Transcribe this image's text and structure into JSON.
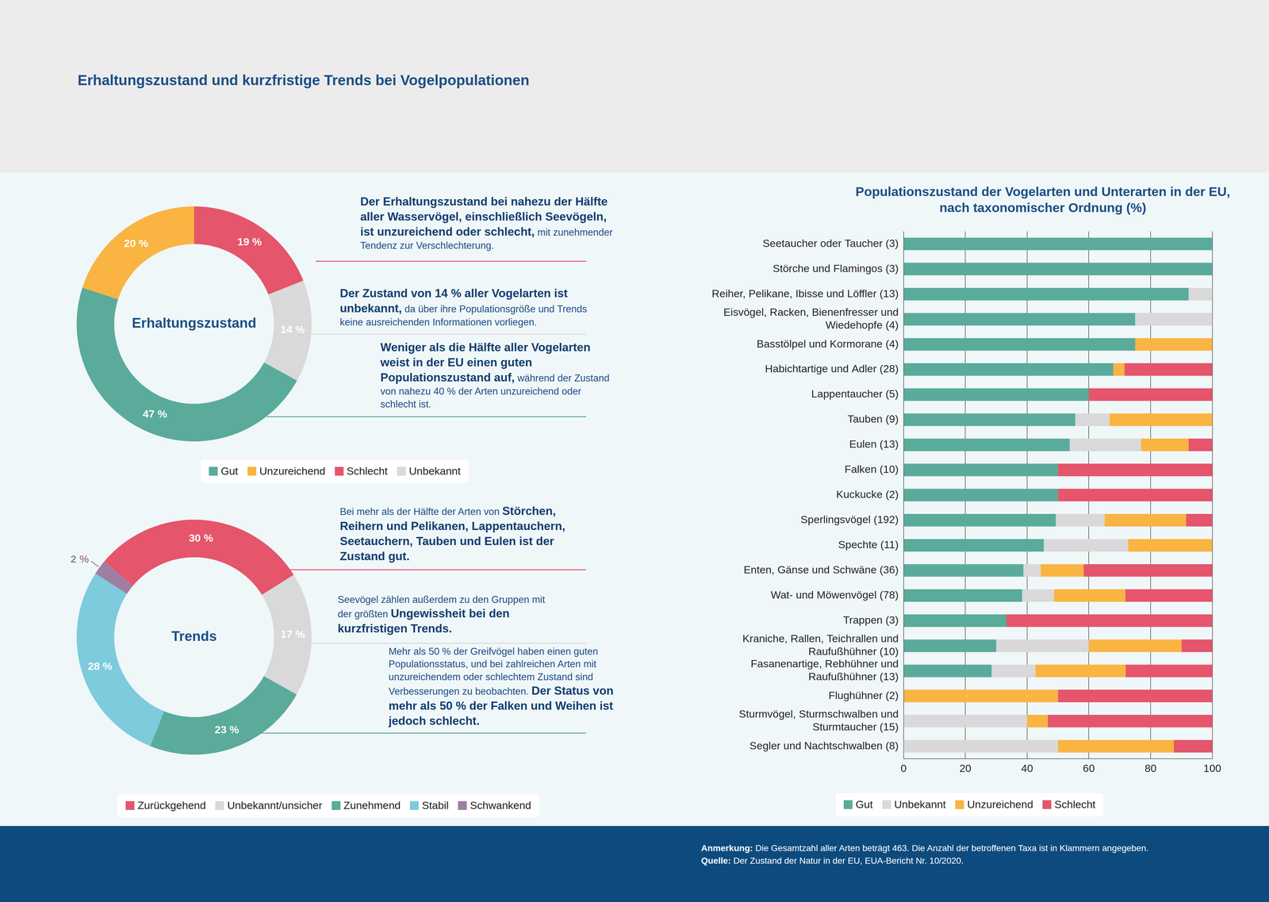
{
  "header": {
    "title": "Erhaltungszustand und kurzfristige Trends bei Vogelpopulationen"
  },
  "chart_data": [
    {
      "type": "doughnut",
      "title": "Erhaltungszustand",
      "categories": [
        "Gut",
        "Unzureichend",
        "Schlecht",
        "Unbekannt"
      ],
      "values": [
        47,
        20,
        19,
        14
      ],
      "value_labels": [
        "47 %",
        "20 %",
        "19 %",
        "14 %"
      ],
      "colors": [
        "#5aab9b",
        "#f9b441",
        "#e5556b",
        "#d9d9d9"
      ],
      "data_labels": true,
      "legend": "bottom",
      "annotations": [
        {
          "spans": [
            {
              "text": "Der Erhaltungszustand bei nahezu der Hälfte aller Wasservögel, einschließlich Seevögeln, ist unzureichend oder schlecht,",
              "bold": true
            },
            {
              "text": "mit zunehmender Tendenz zur Verschlechterung."
            }
          ]
        },
        {
          "spans": [
            {
              "text": "Der Zustand von 14 % aller Vogelarten ist unbekannt,",
              "bold": true
            },
            {
              "text": "da über ihre Populationsgröße und Trends keine ausreichenden Informationen vorliegen."
            }
          ]
        },
        {
          "spans": [
            {
              "text": "Weniger als die Hälfte aller Vogelarten weist in der EU einen guten Populationszustand auf,",
              "bold": true
            },
            {
              "text": "während der Zustand von nahezu 40 % der Arten unzureichend oder schlecht ist."
            }
          ]
        }
      ]
    },
    {
      "type": "doughnut",
      "title": "Trends",
      "categories": [
        "Zurückgehend",
        "Unbekannt/unsicher",
        "Zunehmend",
        "Stabil",
        "Schwankend"
      ],
      "values": [
        30,
        17,
        23,
        28,
        2
      ],
      "value_labels": [
        "30 %",
        "17 %",
        "23 %",
        "28 %",
        "2 %"
      ],
      "colors": [
        "#e5556b",
        "#d9d9d9",
        "#5aab9b",
        "#7ecbdd",
        "#9e7fa2"
      ],
      "data_labels": true,
      "legend": "bottom",
      "annotations": [
        {
          "spans": [
            {
              "text": "Bei mehr als der Hälfte der Arten von"
            },
            {
              "text": "Störchen, Reihern und Pelikanen, Lappentauchern, Seetauchern, Tauben und Eulen ist der Zustand gut.",
              "bold": true
            }
          ]
        },
        {
          "spans": [
            {
              "text": "Seevögel zählen außerdem zu den Gruppen mit der größten"
            },
            {
              "text": "Ungewissheit bei den kurzfristigen Trends.",
              "bold": true
            }
          ]
        },
        {
          "spans": [
            {
              "text": "Mehr als 50 % der Greifvögel haben einen guten Populationsstatus, und bei zahlreichen Arten mit unzureichendem oder schlechtem Zustand sind Verbesserungen zu beobachten."
            },
            {
              "text": "Der Status von mehr als 50 % der Falken und Weihen ist jedoch schlecht.",
              "bold": true
            }
          ]
        }
      ]
    },
    {
      "type": "bar",
      "orientation": "horizontal",
      "stacked": true,
      "title": "Populationszustand der Vogelarten und Unterarten in der EU, nach taxonomischer Ordnung (%)",
      "categories": [
        "Seetaucher oder Taucher (3)",
        "Störche und Flamingos (3)",
        "Reiher, Pelikane, Ibisse und Löffler (13)",
        "Eisvögel, Racken, Bienenfresser und Wiedehopfe (4)",
        "Basstölpel und Kormorane (4)",
        "Habichtartige und Adler (28)",
        "Lappentaucher (5)",
        "Tauben (9)",
        "Eulen (13)",
        "Falken (10)",
        "Kuckucke (2)",
        "Sperlingsvögel (192)",
        "Spechte (11)",
        "Enten, Gänse und Schwäne (36)",
        "Wat- und Möwenvögel (78)",
        "Trappen (3)",
        "Kraniche, Rallen, Teichrallen und Raufußhühner (10)",
        "Fasanenartige, Rebhühner und Raufußhühner (13)",
        "Flughühner (2)",
        "Sturmvögel, Sturmschwalben und Sturmtaucher (15)",
        "Segler und Nachtschwalben (8)"
      ],
      "series": [
        {
          "name": "Gut",
          "color": "#5aab9b",
          "values": [
            100,
            100,
            92.3,
            75,
            75,
            67.9,
            60,
            55.6,
            53.8,
            50,
            50,
            49.3,
            45.4,
            38.8,
            38.4,
            33.3,
            30,
            28.5,
            0,
            0,
            0
          ]
        },
        {
          "name": "Unbekannt",
          "color": "#d9d9d9",
          "values": [
            0,
            0,
            7.7,
            25,
            0,
            0,
            0,
            11.1,
            23.1,
            0,
            0,
            15.8,
            27.3,
            5.6,
            10.3,
            0,
            30,
            14.2,
            0,
            40,
            50
          ]
        },
        {
          "name": "Unzureichend",
          "color": "#f9b441",
          "values": [
            0,
            0,
            0,
            0,
            25,
            3.6,
            0,
            33.3,
            15.4,
            0,
            0,
            26.4,
            27.3,
            13.9,
            23.1,
            0,
            30,
            29.2,
            50,
            6.7,
            37.5
          ]
        },
        {
          "name": "Schlecht",
          "color": "#e5556b",
          "values": [
            0,
            0,
            0,
            0,
            0,
            28.5,
            40,
            0,
            7.7,
            50,
            50,
            8.5,
            0,
            41.7,
            28.2,
            66.7,
            10,
            28.1,
            50,
            53.3,
            12.5
          ]
        }
      ],
      "xlim": [
        0,
        100
      ],
      "xticks": [
        0,
        20,
        40,
        60,
        80,
        100
      ],
      "grid": true,
      "legend": "bottom"
    }
  ],
  "footer": {
    "note_label": "Anmerkung:",
    "note": "Die Gesamtzahl aller Arten beträgt 463. Die Anzahl der betroffenen Taxa ist in Klammern angegeben.",
    "source_label": "Quelle:",
    "source": "Der Zustand der Natur in der EU, EUA-Bericht Nr. 10/2020."
  }
}
